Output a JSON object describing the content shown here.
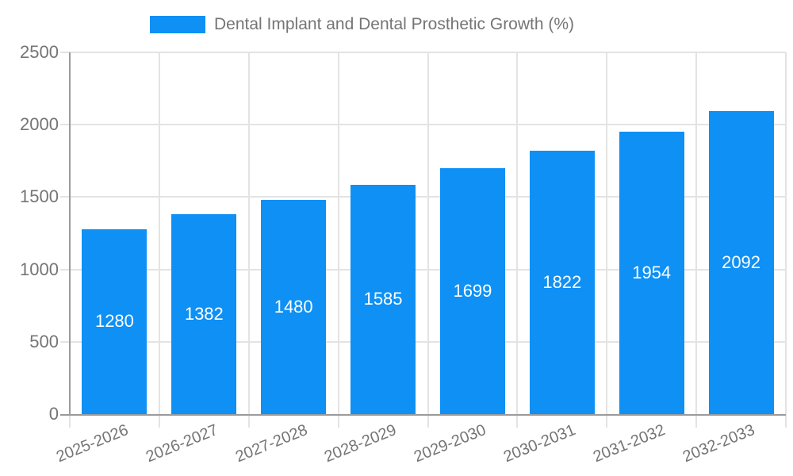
{
  "chart_data": {
    "type": "bar",
    "title": "Dental Implant and Dental Prosthetic Growth (%)",
    "categories": [
      "2025-2026",
      "2026-2027",
      "2027-2028",
      "2028-2029",
      "2029-2030",
      "2030-2031",
      "2031-2032",
      "2032-2033"
    ],
    "values": [
      1280,
      1382,
      1480,
      1585,
      1699,
      1822,
      1954,
      2092
    ],
    "xlabel": "",
    "ylabel": "",
    "ylim": [
      0,
      2500
    ],
    "yticks": [
      0,
      500,
      1000,
      1500,
      2000,
      2500
    ],
    "grid": "on",
    "legend_position": "top-center",
    "value_labels": "inside-middle",
    "colors": {
      "bar": "#0e90f5",
      "value_label": "#ffffff",
      "tick_label": "#757575",
      "title": "#757575",
      "grid_line": "#e3e3e3",
      "axis_line": "#9b9b9b",
      "background": "#ffffff"
    }
  }
}
